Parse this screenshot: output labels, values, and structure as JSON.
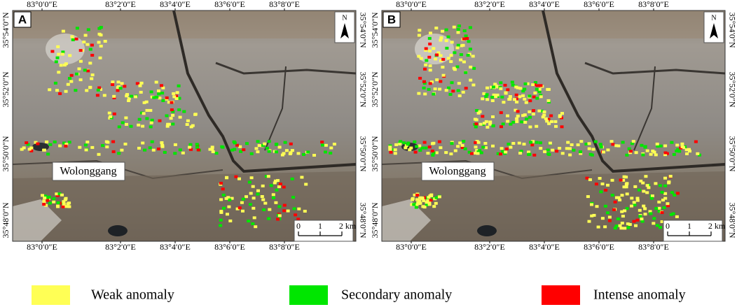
{
  "panels": [
    {
      "label": "A",
      "longitudes": [
        "83°0′0″E",
        "83°2′0″E",
        "83°4′0″E",
        "83°6′0″E",
        "83°8′0″E"
      ],
      "latitudes": [
        "35°54′0″N",
        "35°52′0″N",
        "35°50′0″N",
        "35°48′0″N"
      ],
      "place": "Wolonggang",
      "north": "N",
      "scale": [
        "0",
        "1",
        "2 km"
      ]
    },
    {
      "label": "B",
      "longitudes": [
        "83°0′0″E",
        "83°2′0″E",
        "83°4′0″E",
        "83°6′0″E",
        "83°8′0″E"
      ],
      "latitudes": [
        "35°54′0″N",
        "35°52′0″N",
        "35°50′0″N",
        "35°48′0″N"
      ],
      "place": "Wolonggang",
      "north": "N",
      "scale": [
        "0",
        "1",
        "2 km"
      ]
    }
  ],
  "legend": [
    {
      "label": "Weak anomaly",
      "color": "#ffff55"
    },
    {
      "label": "Secondary anomaly",
      "color": "#00e600"
    },
    {
      "label": "Intense anomaly",
      "color": "#ff0000"
    }
  ]
}
